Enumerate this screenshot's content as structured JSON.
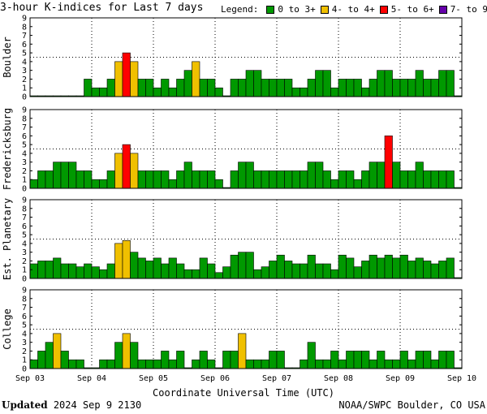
{
  "title": "3-hour K-indices for Last 7 days",
  "legend": {
    "label": "Legend:",
    "items": [
      {
        "label": "0 to 3+",
        "color": "#009900"
      },
      {
        "label": "4- to 4+",
        "color": "#f0c000"
      },
      {
        "label": "5- to 6+",
        "color": "#ff0000"
      },
      {
        "label": "7- to 9",
        "color": "#6600aa"
      }
    ]
  },
  "xlabel": "Coordinate Universal Time (UTC)",
  "updated_label": "Updated",
  "updated_value": "2024 Sep  9 2130",
  "source": "NOAA/SWPC Boulder, CO USA",
  "chart_data": {
    "type": "bar",
    "x_ticks": [
      "Sep 03",
      "Sep 04",
      "Sep 05",
      "Sep 06",
      "Sep 07",
      "Sep 08",
      "Sep 09",
      "Sep 10"
    ],
    "ylim": [
      0,
      9
    ],
    "y_ticks": [
      "0",
      "1",
      "2",
      "3",
      "4",
      "5",
      "6",
      "7",
      "8",
      "9"
    ],
    "grid": true,
    "panels": [
      {
        "name": "Boulder",
        "values": [
          0,
          0,
          0,
          0,
          0,
          0,
          0,
          2,
          1,
          1,
          2,
          4,
          5,
          4,
          2,
          2,
          1,
          2,
          1,
          2,
          3,
          4,
          2,
          2,
          1,
          0,
          2,
          2,
          3,
          3,
          2,
          2,
          2,
          2,
          1,
          1,
          2,
          3,
          3,
          1,
          2,
          2,
          2,
          1,
          2,
          3,
          3,
          2,
          2,
          2,
          3,
          2,
          2,
          3,
          3,
          0
        ]
      },
      {
        "name": "Fredericksburg",
        "values": [
          1,
          2,
          2,
          3,
          3,
          3,
          2,
          2,
          1,
          1,
          2,
          4,
          5,
          4,
          2,
          2,
          2,
          2,
          1,
          2,
          3,
          2,
          2,
          2,
          1,
          0,
          2,
          3,
          3,
          2,
          2,
          2,
          2,
          2,
          2,
          2,
          3,
          3,
          2,
          1,
          2,
          2,
          1,
          2,
          3,
          3,
          6,
          3,
          2,
          2,
          3,
          2,
          2,
          2,
          2,
          0
        ]
      },
      {
        "name": "Est. Planetary",
        "values": [
          1.67,
          2,
          2,
          2.33,
          1.67,
          1.67,
          1.33,
          1.67,
          1.33,
          1,
          1.67,
          4,
          4.33,
          3,
          2.33,
          2,
          2.33,
          1.67,
          2.33,
          1.67,
          1,
          1,
          2.33,
          1.67,
          0.67,
          1.33,
          2.67,
          3,
          3,
          1,
          1.33,
          2,
          2.67,
          2,
          1.67,
          1.67,
          2.67,
          1.67,
          1.67,
          1,
          2.67,
          2.33,
          1.33,
          2,
          2.67,
          2.33,
          2.67,
          2.33,
          2.67,
          2,
          2.33,
          2,
          1.67,
          2,
          2.33,
          0
        ]
      },
      {
        "name": "College",
        "values": [
          1,
          2,
          3,
          4,
          2,
          1,
          1,
          0,
          0,
          1,
          1,
          3,
          4,
          3,
          1,
          1,
          1,
          2,
          1,
          2,
          0,
          1,
          2,
          1,
          0,
          2,
          2,
          4,
          1,
          1,
          1,
          2,
          2,
          0,
          0,
          1,
          3,
          1,
          1,
          2,
          1,
          2,
          2,
          2,
          1,
          2,
          1,
          1,
          2,
          1,
          2,
          2,
          1,
          2,
          2,
          0
        ]
      }
    ]
  }
}
